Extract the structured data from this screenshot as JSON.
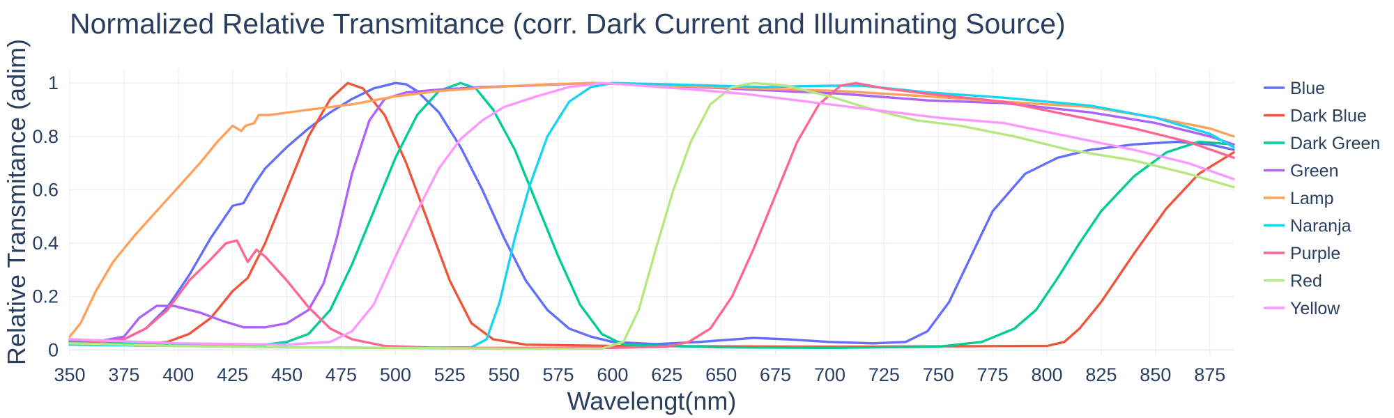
{
  "chart_data": {
    "type": "line",
    "title": "Normalized Relative Transmitance (corr. Dark Current and Illuminating Source)",
    "xlabel": "Wavelengt(nm)",
    "ylabel": "Relative Transmitance (adim)",
    "xlim": [
      350,
      886
    ],
    "ylim": [
      -0.02,
      1.05
    ],
    "xticks": [
      350,
      375,
      400,
      425,
      450,
      475,
      500,
      525,
      550,
      575,
      600,
      625,
      650,
      675,
      700,
      725,
      750,
      775,
      800,
      825,
      850,
      875
    ],
    "yticks": [
      0,
      0.2,
      0.4,
      0.6,
      0.8,
      1
    ],
    "ytick_labels": [
      "0",
      "0.2",
      "0.4",
      "0.6",
      "0.8",
      "1"
    ],
    "grid": true,
    "legend_position": "right",
    "series": [
      {
        "name": "Blue",
        "color": "#636efa",
        "points": [
          [
            350,
            0.04
          ],
          [
            365,
            0.035
          ],
          [
            375,
            0.04
          ],
          [
            385,
            0.08
          ],
          [
            395,
            0.16
          ],
          [
            405,
            0.28
          ],
          [
            415,
            0.42
          ],
          [
            425,
            0.54
          ],
          [
            430,
            0.55
          ],
          [
            435,
            0.62
          ],
          [
            440,
            0.68
          ],
          [
            450,
            0.76
          ],
          [
            460,
            0.83
          ],
          [
            470,
            0.89
          ],
          [
            480,
            0.94
          ],
          [
            490,
            0.98
          ],
          [
            500,
            1.0
          ],
          [
            505,
            0.995
          ],
          [
            510,
            0.97
          ],
          [
            520,
            0.89
          ],
          [
            530,
            0.76
          ],
          [
            540,
            0.6
          ],
          [
            550,
            0.42
          ],
          [
            560,
            0.26
          ],
          [
            570,
            0.15
          ],
          [
            580,
            0.08
          ],
          [
            590,
            0.05
          ],
          [
            600,
            0.03
          ],
          [
            620,
            0.022
          ],
          [
            640,
            0.03
          ],
          [
            665,
            0.045
          ],
          [
            680,
            0.04
          ],
          [
            700,
            0.03
          ],
          [
            720,
            0.025
          ],
          [
            735,
            0.03
          ],
          [
            745,
            0.07
          ],
          [
            755,
            0.18
          ],
          [
            765,
            0.35
          ],
          [
            775,
            0.52
          ],
          [
            790,
            0.66
          ],
          [
            805,
            0.72
          ],
          [
            820,
            0.75
          ],
          [
            840,
            0.77
          ],
          [
            860,
            0.78
          ],
          [
            875,
            0.77
          ],
          [
            886,
            0.75
          ]
        ]
      },
      {
        "name": "Dark Blue",
        "color": "#ef553b",
        "points": [
          [
            350,
            0.02
          ],
          [
            365,
            0.02
          ],
          [
            380,
            0.02
          ],
          [
            395,
            0.03
          ],
          [
            405,
            0.06
          ],
          [
            415,
            0.12
          ],
          [
            425,
            0.22
          ],
          [
            432,
            0.27
          ],
          [
            440,
            0.4
          ],
          [
            450,
            0.6
          ],
          [
            460,
            0.8
          ],
          [
            470,
            0.94
          ],
          [
            478,
            1.0
          ],
          [
            485,
            0.98
          ],
          [
            495,
            0.88
          ],
          [
            505,
            0.7
          ],
          [
            515,
            0.48
          ],
          [
            525,
            0.26
          ],
          [
            535,
            0.1
          ],
          [
            545,
            0.04
          ],
          [
            560,
            0.02
          ],
          [
            600,
            0.015
          ],
          [
            700,
            0.012
          ],
          [
            800,
            0.015
          ],
          [
            808,
            0.03
          ],
          [
            815,
            0.08
          ],
          [
            825,
            0.18
          ],
          [
            840,
            0.36
          ],
          [
            855,
            0.53
          ],
          [
            870,
            0.66
          ],
          [
            886,
            0.74
          ]
        ]
      },
      {
        "name": "Dark Green",
        "color": "#00cc96",
        "points": [
          [
            350,
            0.03
          ],
          [
            375,
            0.025
          ],
          [
            400,
            0.02
          ],
          [
            425,
            0.015
          ],
          [
            440,
            0.02
          ],
          [
            450,
            0.03
          ],
          [
            460,
            0.06
          ],
          [
            470,
            0.15
          ],
          [
            480,
            0.32
          ],
          [
            490,
            0.52
          ],
          [
            500,
            0.72
          ],
          [
            510,
            0.88
          ],
          [
            520,
            0.97
          ],
          [
            530,
            1.0
          ],
          [
            537,
            0.98
          ],
          [
            545,
            0.9
          ],
          [
            555,
            0.75
          ],
          [
            565,
            0.55
          ],
          [
            575,
            0.35
          ],
          [
            585,
            0.17
          ],
          [
            595,
            0.06
          ],
          [
            605,
            0.02
          ],
          [
            650,
            0.01
          ],
          [
            700,
            0.008
          ],
          [
            750,
            0.012
          ],
          [
            770,
            0.03
          ],
          [
            785,
            0.08
          ],
          [
            795,
            0.15
          ],
          [
            805,
            0.27
          ],
          [
            815,
            0.4
          ],
          [
            825,
            0.52
          ],
          [
            840,
            0.65
          ],
          [
            855,
            0.74
          ],
          [
            870,
            0.78
          ],
          [
            886,
            0.77
          ]
        ]
      },
      {
        "name": "Green",
        "color": "#ab63fa",
        "points": [
          [
            350,
            0.035
          ],
          [
            365,
            0.035
          ],
          [
            375,
            0.05
          ],
          [
            382,
            0.12
          ],
          [
            390,
            0.165
          ],
          [
            398,
            0.165
          ],
          [
            410,
            0.14
          ],
          [
            420,
            0.11
          ],
          [
            430,
            0.085
          ],
          [
            440,
            0.085
          ],
          [
            450,
            0.1
          ],
          [
            460,
            0.15
          ],
          [
            467,
            0.25
          ],
          [
            473,
            0.42
          ],
          [
            480,
            0.66
          ],
          [
            488,
            0.86
          ],
          [
            495,
            0.94
          ],
          [
            505,
            0.965
          ],
          [
            520,
            0.975
          ],
          [
            540,
            0.985
          ],
          [
            560,
            0.99
          ],
          [
            590,
            1.0
          ],
          [
            625,
            0.99
          ],
          [
            665,
            0.975
          ],
          [
            705,
            0.96
          ],
          [
            745,
            0.935
          ],
          [
            780,
            0.925
          ],
          [
            820,
            0.89
          ],
          [
            850,
            0.85
          ],
          [
            875,
            0.8
          ],
          [
            886,
            0.77
          ]
        ]
      },
      {
        "name": "Lamp",
        "color": "#ffa15a",
        "points": [
          [
            350,
            0.05
          ],
          [
            355,
            0.1
          ],
          [
            362,
            0.22
          ],
          [
            370,
            0.33
          ],
          [
            380,
            0.43
          ],
          [
            390,
            0.52
          ],
          [
            400,
            0.61
          ],
          [
            410,
            0.7
          ],
          [
            418,
            0.78
          ],
          [
            425,
            0.84
          ],
          [
            429,
            0.82
          ],
          [
            431,
            0.84
          ],
          [
            435,
            0.85
          ],
          [
            437,
            0.88
          ],
          [
            442,
            0.88
          ],
          [
            460,
            0.9
          ],
          [
            480,
            0.92
          ],
          [
            500,
            0.95
          ],
          [
            520,
            0.97
          ],
          [
            545,
            0.985
          ],
          [
            570,
            0.995
          ],
          [
            590,
            1.0
          ],
          [
            625,
            0.99
          ],
          [
            665,
            0.98
          ],
          [
            705,
            0.97
          ],
          [
            745,
            0.95
          ],
          [
            780,
            0.93
          ],
          [
            820,
            0.91
          ],
          [
            850,
            0.87
          ],
          [
            875,
            0.83
          ],
          [
            886,
            0.8
          ]
        ]
      },
      {
        "name": "Naranja",
        "color": "#19d3f3",
        "points": [
          [
            350,
            0.02
          ],
          [
            450,
            0.01
          ],
          [
            500,
            0.008
          ],
          [
            535,
            0.01
          ],
          [
            542,
            0.04
          ],
          [
            548,
            0.18
          ],
          [
            555,
            0.42
          ],
          [
            562,
            0.62
          ],
          [
            570,
            0.8
          ],
          [
            580,
            0.93
          ],
          [
            590,
            0.985
          ],
          [
            600,
            1.0
          ],
          [
            625,
            0.995
          ],
          [
            670,
            0.985
          ],
          [
            700,
            0.99
          ],
          [
            715,
            0.99
          ],
          [
            745,
            0.965
          ],
          [
            780,
            0.945
          ],
          [
            820,
            0.915
          ],
          [
            850,
            0.87
          ],
          [
            875,
            0.81
          ],
          [
            886,
            0.76
          ]
        ]
      },
      {
        "name": "Purple",
        "color": "#ff6692",
        "points": [
          [
            350,
            0.04
          ],
          [
            365,
            0.03
          ],
          [
            375,
            0.04
          ],
          [
            385,
            0.08
          ],
          [
            395,
            0.15
          ],
          [
            405,
            0.26
          ],
          [
            415,
            0.34
          ],
          [
            422,
            0.4
          ],
          [
            427,
            0.41
          ],
          [
            432,
            0.33
          ],
          [
            436,
            0.375
          ],
          [
            440,
            0.35
          ],
          [
            450,
            0.26
          ],
          [
            460,
            0.16
          ],
          [
            470,
            0.08
          ],
          [
            480,
            0.04
          ],
          [
            495,
            0.015
          ],
          [
            520,
            0.008
          ],
          [
            600,
            0.008
          ],
          [
            625,
            0.012
          ],
          [
            635,
            0.03
          ],
          [
            645,
            0.08
          ],
          [
            655,
            0.2
          ],
          [
            665,
            0.38
          ],
          [
            675,
            0.58
          ],
          [
            685,
            0.78
          ],
          [
            695,
            0.92
          ],
          [
            705,
            0.99
          ],
          [
            712,
            1.0
          ],
          [
            725,
            0.98
          ],
          [
            745,
            0.96
          ],
          [
            780,
            0.93
          ],
          [
            810,
            0.88
          ],
          [
            840,
            0.83
          ],
          [
            865,
            0.78
          ],
          [
            886,
            0.72
          ]
        ]
      },
      {
        "name": "Red",
        "color": "#b6e880",
        "points": [
          [
            350,
            0.025
          ],
          [
            400,
            0.015
          ],
          [
            450,
            0.01
          ],
          [
            550,
            0.005
          ],
          [
            595,
            0.005
          ],
          [
            605,
            0.03
          ],
          [
            612,
            0.15
          ],
          [
            620,
            0.38
          ],
          [
            628,
            0.6
          ],
          [
            636,
            0.78
          ],
          [
            645,
            0.92
          ],
          [
            655,
            0.985
          ],
          [
            665,
            1.0
          ],
          [
            680,
            0.99
          ],
          [
            700,
            0.95
          ],
          [
            720,
            0.9
          ],
          [
            740,
            0.86
          ],
          [
            760,
            0.84
          ],
          [
            785,
            0.8
          ],
          [
            810,
            0.75
          ],
          [
            840,
            0.71
          ],
          [
            865,
            0.66
          ],
          [
            886,
            0.61
          ]
        ]
      },
      {
        "name": "Yellow",
        "color": "#ff97ff",
        "points": [
          [
            350,
            0.04
          ],
          [
            400,
            0.025
          ],
          [
            450,
            0.02
          ],
          [
            470,
            0.03
          ],
          [
            480,
            0.07
          ],
          [
            490,
            0.17
          ],
          [
            500,
            0.35
          ],
          [
            510,
            0.52
          ],
          [
            520,
            0.68
          ],
          [
            530,
            0.79
          ],
          [
            540,
            0.86
          ],
          [
            550,
            0.91
          ],
          [
            565,
            0.95
          ],
          [
            580,
            0.985
          ],
          [
            595,
            1.0
          ],
          [
            605,
            0.995
          ],
          [
            630,
            0.98
          ],
          [
            660,
            0.96
          ],
          [
            690,
            0.93
          ],
          [
            720,
            0.9
          ],
          [
            750,
            0.87
          ],
          [
            780,
            0.85
          ],
          [
            810,
            0.8
          ],
          [
            840,
            0.75
          ],
          [
            865,
            0.7
          ],
          [
            886,
            0.64
          ]
        ]
      }
    ]
  }
}
